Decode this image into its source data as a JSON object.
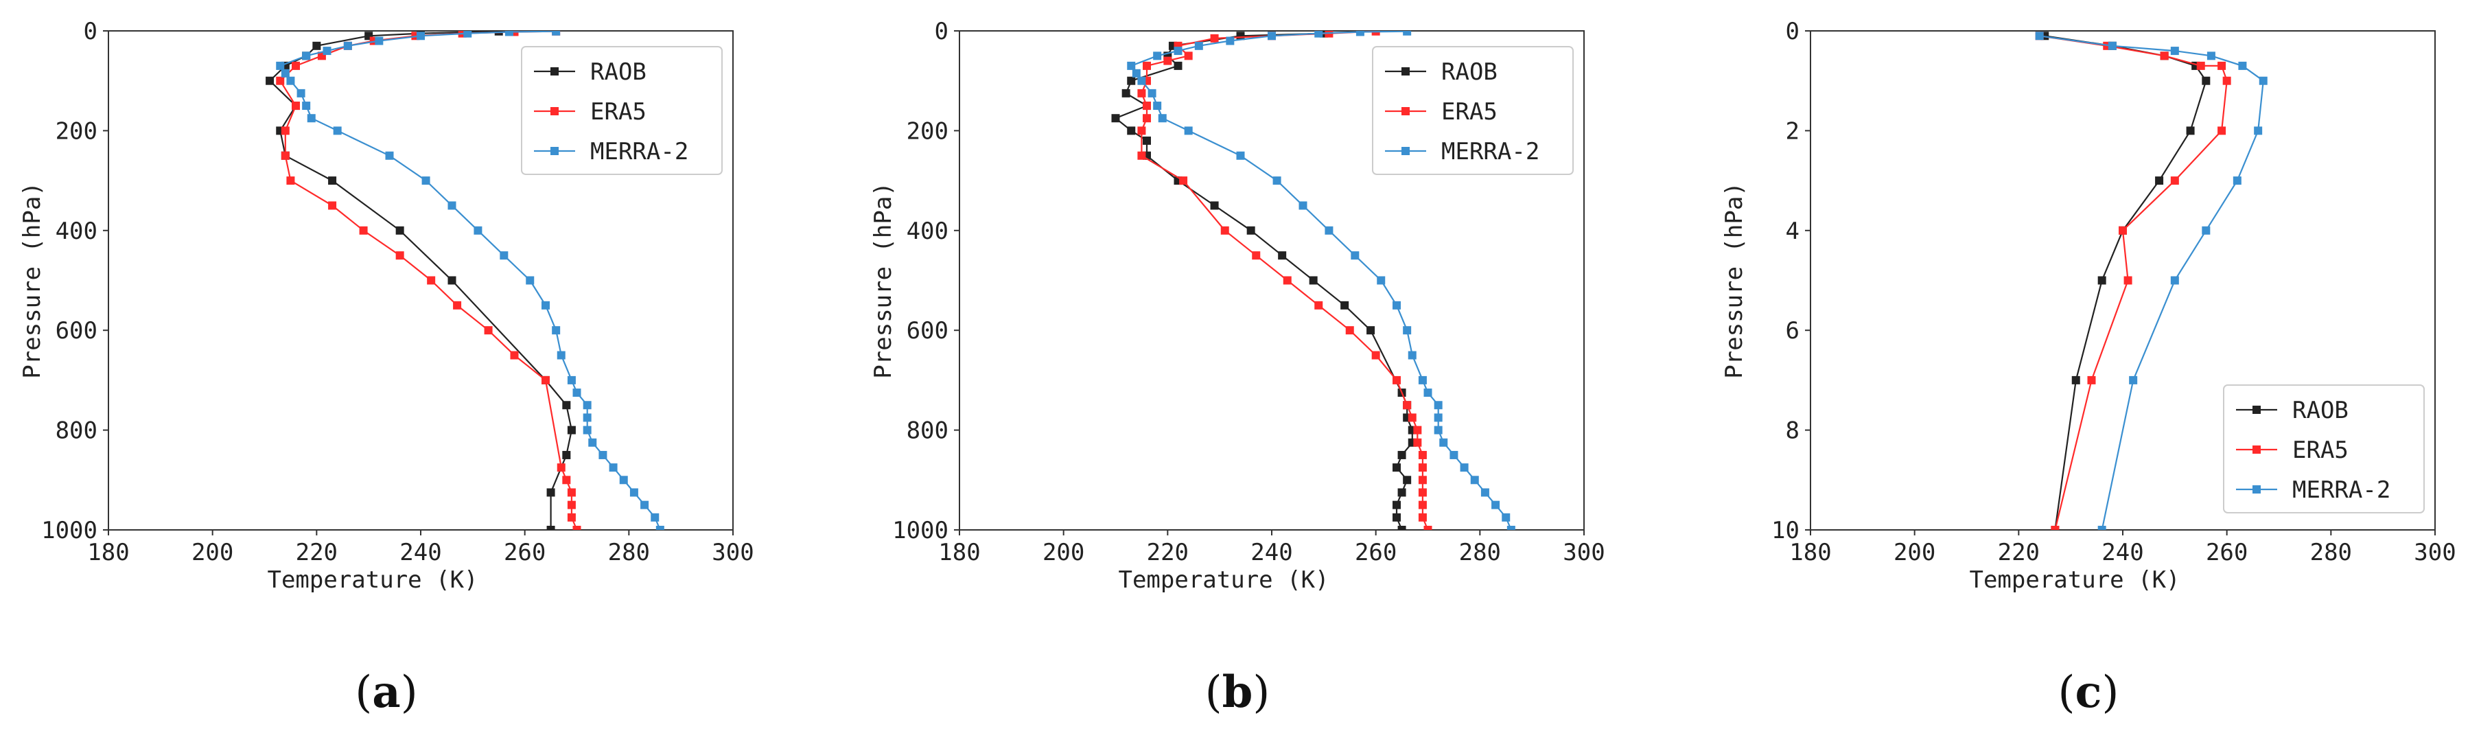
{
  "figure": {
    "colors": {
      "RAOB": "#222222",
      "ERA5": "#ff2a2a",
      "MERRA-2": "#3a8fd0"
    }
  },
  "chart_data": [
    {
      "type": "line",
      "panel": "a",
      "caption": {
        "open": "(",
        "letter": "a",
        "close": ")"
      },
      "xlabel": "Temperature (K)",
      "ylabel": "Pressure (hPa)",
      "xlim": [
        180,
        300
      ],
      "ylim": [
        1000,
        0
      ],
      "xticks": [
        "180",
        "200",
        "220",
        "240",
        "260",
        "280",
        "300"
      ],
      "yticks": [
        "0",
        "200",
        "400",
        "600",
        "800",
        "1000"
      ],
      "xtick_values": [
        180,
        200,
        220,
        240,
        260,
        280,
        300
      ],
      "ytick_values": [
        0,
        200,
        400,
        600,
        800,
        1000
      ],
      "legend": {
        "position": "top-right",
        "entries": [
          "RAOB",
          "ERA5",
          "MERRA-2"
        ]
      },
      "series": [
        {
          "name": "RAOB",
          "x": [
            265,
            265,
            268,
            269,
            268,
            264,
            246,
            236,
            223,
            214,
            213,
            216,
            211,
            214,
            218,
            220,
            230,
            240,
            255
          ],
          "y": [
            1000,
            925,
            850,
            800,
            750,
            700,
            500,
            400,
            300,
            250,
            200,
            150,
            100,
            70,
            50,
            30,
            10,
            5,
            1
          ]
        },
        {
          "name": "ERA5",
          "x": [
            270,
            269,
            269,
            269,
            268,
            267,
            264,
            258,
            253,
            247,
            242,
            236,
            229,
            223,
            215,
            214,
            214,
            216,
            213,
            216,
            221,
            226,
            231,
            239,
            248,
            258,
            266
          ],
          "y": [
            1000,
            975,
            950,
            925,
            900,
            875,
            700,
            650,
            600,
            550,
            500,
            450,
            400,
            350,
            300,
            250,
            200,
            150,
            100,
            70,
            50,
            30,
            20,
            10,
            5,
            2,
            1
          ]
        },
        {
          "name": "MERRA-2",
          "x": [
            286,
            285,
            283,
            281,
            279,
            277,
            275,
            273,
            272,
            272,
            272,
            270,
            269,
            267,
            266,
            264,
            261,
            256,
            251,
            246,
            241,
            234,
            224,
            219,
            218,
            217,
            215,
            214,
            213,
            218,
            222,
            226,
            232,
            240,
            249,
            257,
            266
          ],
          "y": [
            1000,
            975,
            950,
            925,
            900,
            875,
            850,
            825,
            800,
            775,
            750,
            725,
            700,
            650,
            600,
            550,
            500,
            450,
            400,
            350,
            300,
            250,
            200,
            175,
            150,
            125,
            100,
            85,
            70,
            50,
            40,
            30,
            20,
            10,
            5,
            2,
            1
          ]
        }
      ]
    },
    {
      "type": "line",
      "panel": "b",
      "caption": {
        "open": "(",
        "letter": "b",
        "close": ")"
      },
      "xlabel": "Temperature (K)",
      "ylabel": "Pressure (hPa)",
      "xlim": [
        180,
        300
      ],
      "ylim": [
        1000,
        0
      ],
      "xticks": [
        "180",
        "200",
        "220",
        "240",
        "260",
        "280",
        "300"
      ],
      "yticks": [
        "0",
        "200",
        "400",
        "600",
        "800",
        "1000"
      ],
      "xtick_values": [
        180,
        200,
        220,
        240,
        260,
        280,
        300
      ],
      "ytick_values": [
        0,
        200,
        400,
        600,
        800,
        1000
      ],
      "legend": {
        "position": "top-right",
        "entries": [
          "RAOB",
          "ERA5",
          "MERRA-2"
        ]
      },
      "series": [
        {
          "name": "RAOB",
          "x": [
            265,
            264,
            264,
            265,
            266,
            264,
            265,
            267,
            267,
            266,
            266,
            265,
            259,
            254,
            248,
            242,
            236,
            229,
            222,
            216,
            216,
            213,
            210,
            216,
            212,
            213,
            222,
            220,
            221,
            234,
            250
          ],
          "y": [
            1000,
            975,
            950,
            925,
            900,
            875,
            850,
            825,
            800,
            775,
            750,
            725,
            600,
            550,
            500,
            450,
            400,
            350,
            300,
            250,
            220,
            200,
            175,
            150,
            125,
            100,
            70,
            50,
            30,
            10,
            5
          ]
        },
        {
          "name": "ERA5",
          "x": [
            270,
            269,
            269,
            269,
            269,
            269,
            269,
            268,
            268,
            267,
            266,
            264,
            260,
            255,
            249,
            243,
            237,
            231,
            223,
            215,
            215,
            216,
            216,
            215,
            216,
            216,
            220,
            224,
            222,
            229,
            240,
            251,
            260
          ],
          "y": [
            1000,
            975,
            950,
            925,
            900,
            875,
            850,
            825,
            800,
            775,
            750,
            700,
            650,
            600,
            550,
            500,
            450,
            400,
            300,
            250,
            200,
            175,
            150,
            125,
            100,
            70,
            60,
            50,
            30,
            15,
            10,
            5,
            1
          ]
        },
        {
          "name": "MERRA-2",
          "x": [
            286,
            285,
            283,
            281,
            279,
            277,
            275,
            273,
            272,
            272,
            272,
            270,
            269,
            267,
            266,
            264,
            261,
            256,
            251,
            246,
            241,
            234,
            224,
            219,
            218,
            217,
            215,
            214,
            213,
            218,
            222,
            226,
            232,
            240,
            249,
            257,
            266
          ],
          "y": [
            1000,
            975,
            950,
            925,
            900,
            875,
            850,
            825,
            800,
            775,
            750,
            725,
            700,
            650,
            600,
            550,
            500,
            450,
            400,
            350,
            300,
            250,
            200,
            175,
            150,
            125,
            100,
            85,
            70,
            50,
            40,
            30,
            20,
            10,
            5,
            2,
            1
          ]
        }
      ]
    },
    {
      "type": "line",
      "panel": "c",
      "caption": {
        "open": "(",
        "letter": "c",
        "close": ")"
      },
      "xlabel": "Temperature (K)",
      "ylabel": "Pressure (hPa)",
      "xlim": [
        180,
        300
      ],
      "ylim": [
        10,
        0
      ],
      "xticks": [
        "180",
        "200",
        "220",
        "240",
        "260",
        "280",
        "300"
      ],
      "yticks": [
        "0",
        "2",
        "4",
        "6",
        "8",
        "10"
      ],
      "xtick_values": [
        180,
        200,
        220,
        240,
        260,
        280,
        300
      ],
      "ytick_values": [
        0,
        2,
        4,
        6,
        8,
        10
      ],
      "legend": {
        "position": "bottom-right",
        "entries": [
          "RAOB",
          "ERA5",
          "MERRA-2"
        ]
      },
      "series": [
        {
          "name": "RAOB",
          "x": [
            225,
            238,
            248,
            254,
            256,
            253,
            247,
            240,
            236,
            231,
            227
          ],
          "y": [
            0.1,
            0.3,
            0.5,
            0.7,
            1,
            2,
            3,
            4,
            5,
            7,
            10
          ]
        },
        {
          "name": "ERA5",
          "x": [
            224,
            237,
            248,
            255,
            259,
            260,
            259,
            250,
            240,
            241,
            234,
            227
          ],
          "y": [
            0.1,
            0.3,
            0.5,
            0.7,
            0.7,
            1,
            2,
            3,
            4,
            5,
            7,
            10
          ]
        },
        {
          "name": "MERRA-2",
          "x": [
            224,
            238,
            250,
            257,
            263,
            267,
            266,
            262,
            256,
            250,
            242,
            236
          ],
          "y": [
            0.1,
            0.3,
            0.4,
            0.5,
            0.7,
            1,
            2,
            3,
            4,
            5,
            7,
            10
          ]
        }
      ]
    }
  ]
}
